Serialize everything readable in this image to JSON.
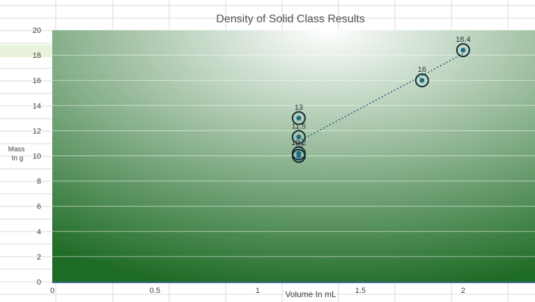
{
  "chart_data": {
    "type": "scatter",
    "title": "Density of Solid Class Results",
    "xlabel": "Volume In mL",
    "ylabel_lines": [
      "Mass",
      "In g"
    ],
    "xlim": [
      0,
      2.35
    ],
    "ylim": [
      0,
      20
    ],
    "x_ticks": [
      0,
      0.5,
      1,
      1.5,
      2
    ],
    "x_tick_labels": [
      "0",
      "0.5",
      "1",
      "1.5",
      "2"
    ],
    "y_ticks": [
      0,
      2,
      4,
      6,
      8,
      10,
      12,
      14,
      16,
      18,
      20
    ],
    "y_tick_labels": [
      "0",
      "2",
      "4",
      "6",
      "8",
      "10",
      "12",
      "14",
      "16",
      "18",
      "20"
    ],
    "grid": true,
    "trendline": "linear-dotted",
    "points": [
      {
        "x": 1.2,
        "y": 13,
        "label": "13"
      },
      {
        "x": 1.2,
        "y": 11.5,
        "label": "11.5"
      },
      {
        "x": 1.2,
        "y": 10.2,
        "label": "10.2"
      },
      {
        "x": 1.2,
        "y": 10,
        "label": "10"
      },
      {
        "x": 1.8,
        "y": 16,
        "label": "16"
      },
      {
        "x": 2.0,
        "y": 18.4,
        "label": "18.4"
      }
    ],
    "colors": {
      "plot_light": "#ffffff",
      "plot_dark": "#1e6b25",
      "marker_ring": "#0d2a36",
      "marker_fill": "#1f6c8a",
      "trendline": "#1f5a78",
      "gridline": "#ffffff"
    }
  }
}
